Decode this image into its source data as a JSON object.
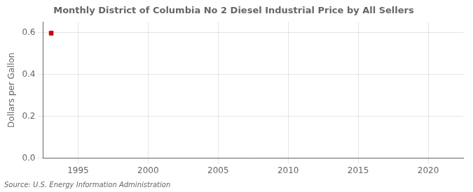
{
  "chart_data": {
    "type": "scatter",
    "title": "Monthly District of Columbia No 2 Diesel Industrial Price by All Sellers",
    "ylabel": "Dollars per Gallon",
    "annotations": [
      "Source: U.S. Energy Information Administration"
    ],
    "x": [
      1993.08
    ],
    "values": [
      0.597
    ],
    "color": "#cc0000",
    "marker": "square",
    "xlim": [
      1992.5,
      2022.5
    ],
    "xticks": [
      1995,
      2000,
      2005,
      2010,
      2015,
      2020
    ],
    "ylim": [
      0.0,
      0.65
    ],
    "yticks": [
      {
        "value": 0.0,
        "label": "0.0"
      },
      0.2,
      0.4,
      0.6
    ],
    "grid": true
  }
}
